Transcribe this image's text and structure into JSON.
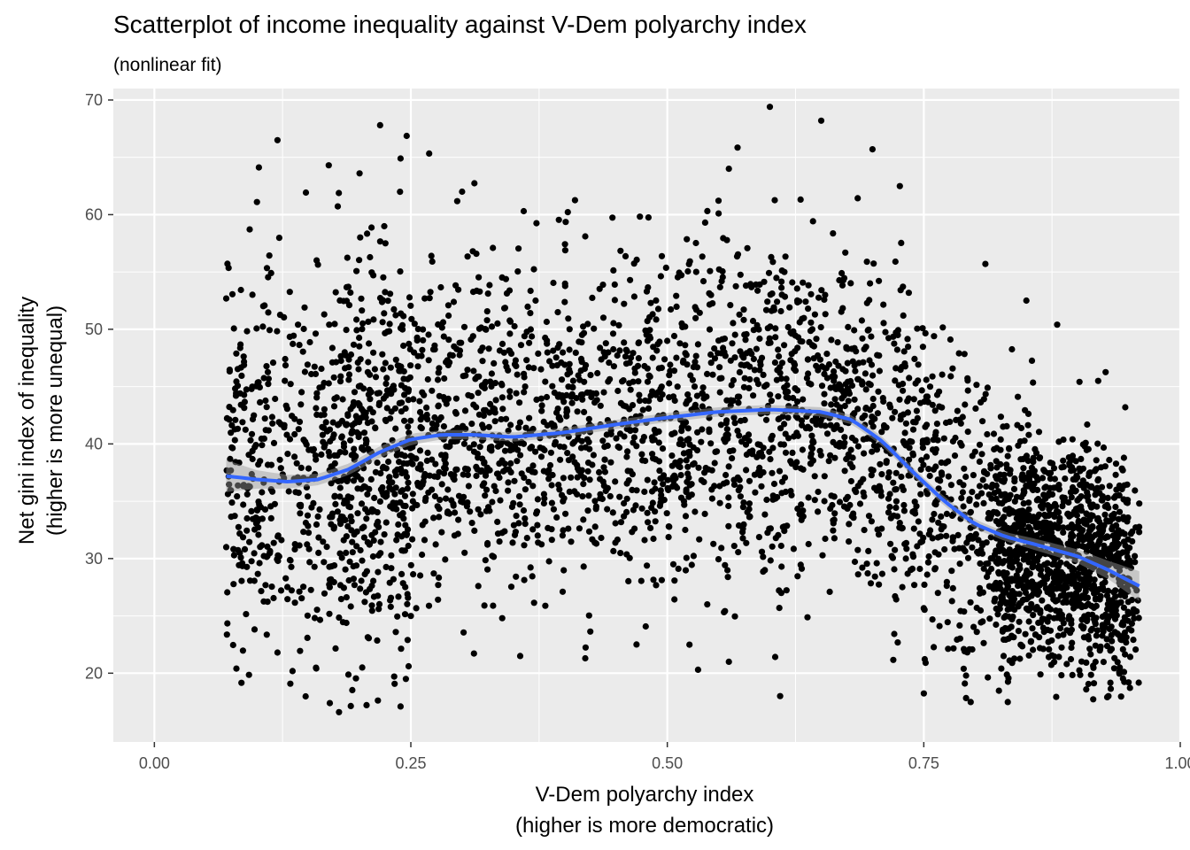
{
  "chart_data": {
    "type": "scatter",
    "title": "Scatterplot of income inequality against V-Dem polyarchy index",
    "subtitle": "(nonlinear fit)",
    "xlabel": [
      "V-Dem polyarchy index",
      "(higher is more democratic)"
    ],
    "ylabel": [
      "Net gini index of inequality",
      "(higher is more unequal)"
    ],
    "xlim": [
      -0.04,
      1.0
    ],
    "ylim": [
      14,
      71
    ],
    "x_ticks": [
      0.0,
      0.25,
      0.5,
      0.75,
      1.0
    ],
    "x_tick_labels": [
      "0.00",
      "0.25",
      "0.50",
      "0.75",
      "1.00"
    ],
    "y_ticks": [
      20,
      30,
      40,
      50,
      60,
      70
    ],
    "y_tick_labels": [
      "20",
      "30",
      "40",
      "50",
      "60",
      "70"
    ],
    "grid": true,
    "panel_background": "#ebebeb",
    "grid_color": "#ffffff",
    "point_color": "#000000",
    "fit_color": "#3366ff",
    "ribbon_color": "#999999",
    "fit": {
      "x": [
        0.07,
        0.1,
        0.13,
        0.16,
        0.19,
        0.22,
        0.25,
        0.28,
        0.31,
        0.35,
        0.4,
        0.45,
        0.5,
        0.55,
        0.6,
        0.65,
        0.68,
        0.71,
        0.74,
        0.77,
        0.8,
        0.83,
        0.86,
        0.9,
        0.93,
        0.96
      ],
      "y": [
        37.2,
        36.9,
        36.7,
        36.9,
        37.8,
        39.3,
        40.4,
        40.8,
        40.8,
        40.6,
        41.0,
        41.7,
        42.3,
        42.8,
        43.0,
        42.8,
        42.1,
        40.2,
        37.5,
        35.0,
        33.0,
        31.9,
        31.2,
        30.2,
        29.0,
        27.6
      ],
      "se": [
        1.4,
        0.8,
        0.6,
        0.5,
        0.5,
        0.5,
        0.5,
        0.4,
        0.4,
        0.4,
        0.4,
        0.4,
        0.4,
        0.4,
        0.4,
        0.4,
        0.4,
        0.4,
        0.4,
        0.4,
        0.4,
        0.4,
        0.5,
        0.6,
        0.8,
        1.3
      ]
    },
    "points": [
      [
        0.08,
        20.4
      ],
      [
        0.12,
        66.5
      ],
      [
        0.18,
        16.6
      ],
      [
        0.22,
        67.8
      ],
      [
        0.24,
        17.1
      ],
      [
        0.6,
        69.4
      ],
      [
        0.61,
        18.0
      ],
      [
        0.65,
        68.2
      ],
      [
        0.93,
        18.0
      ],
      [
        0.96,
        34.8
      ],
      [
        0.07,
        31.0
      ],
      [
        0.12,
        21.8
      ],
      [
        0.42,
        21.3
      ],
      [
        0.47,
        22.5
      ],
      [
        0.53,
        20.3
      ],
      [
        0.56,
        21.0
      ],
      [
        0.79,
        19.1
      ],
      [
        0.7,
        65.7
      ],
      [
        0.56,
        64.0
      ],
      [
        0.24,
        64.9
      ],
      [
        0.36,
        60.3
      ],
      [
        0.3,
        62.0
      ],
      [
        0.83,
        25.0
      ],
      [
        0.2,
        63.6
      ],
      [
        0.17,
        64.3
      ],
      [
        0.81,
        55.7
      ],
      [
        0.85,
        52.5
      ],
      [
        0.92,
        45.5
      ],
      [
        0.1,
        61.1
      ],
      [
        0.14,
        50.4
      ],
      [
        0.64,
        45.2
      ],
      [
        0.73,
        51.2
      ],
      [
        0.55,
        60.1
      ],
      [
        0.33,
        57.1
      ],
      [
        0.42,
        58.1
      ],
      [
        0.27,
        56.4
      ],
      [
        0.48,
        53.3
      ],
      [
        0.88,
        50.4
      ],
      [
        0.76,
        49.4
      ],
      [
        0.4,
        46.9
      ],
      [
        0.59,
        53.9
      ],
      [
        0.67,
        54.9
      ],
      [
        0.36,
        34.2
      ],
      [
        0.44,
        35.9
      ],
      [
        0.52,
        38.0
      ],
      [
        0.16,
        30.5
      ],
      [
        0.28,
        32.3
      ],
      [
        0.58,
        34.8
      ],
      [
        0.62,
        38.5
      ],
      [
        0.68,
        33.7
      ]
    ]
  }
}
